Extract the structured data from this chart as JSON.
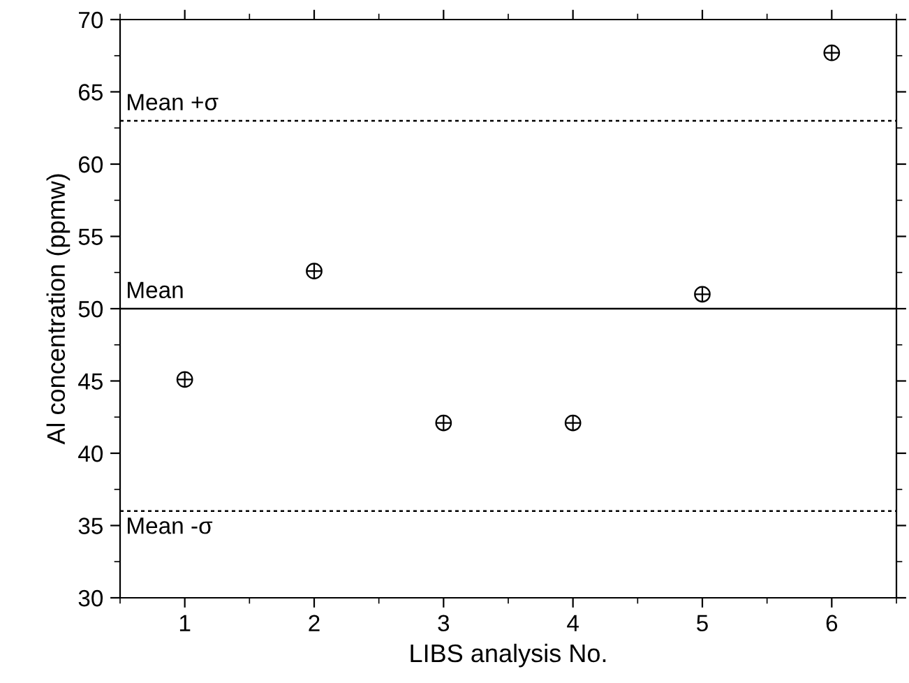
{
  "chart_data": {
    "type": "scatter",
    "xlabel": "LIBS analysis No.",
    "ylabel": "Al concentration (ppmw)",
    "x": [
      1,
      2,
      3,
      4,
      5,
      6
    ],
    "series": [
      {
        "color": "#000000",
        "values": [
          45.1,
          52.6,
          42.1,
          42.1,
          51.0,
          67.7
        ]
      }
    ],
    "xlim": [
      0.5,
      6.5
    ],
    "xticks": [
      1,
      2,
      3,
      4,
      5,
      6
    ],
    "ylim": [
      30,
      70
    ],
    "yticks": [
      30,
      35,
      40,
      45,
      50,
      55,
      60,
      65,
      70
    ],
    "marker": "cross",
    "grid": false,
    "legend": false,
    "ref_lines": [
      {
        "axis": "y",
        "value": 63.0,
        "label": "Mean +σ",
        "line_style": "dotted",
        "color": "#000000"
      },
      {
        "axis": "y",
        "value": 50,
        "label": "Mean",
        "line_style": "solid",
        "color": "#000000"
      },
      {
        "axis": "y",
        "value": 36.0,
        "label": "Mean -σ",
        "line_style": "dotted",
        "color": "#000000"
      }
    ]
  }
}
